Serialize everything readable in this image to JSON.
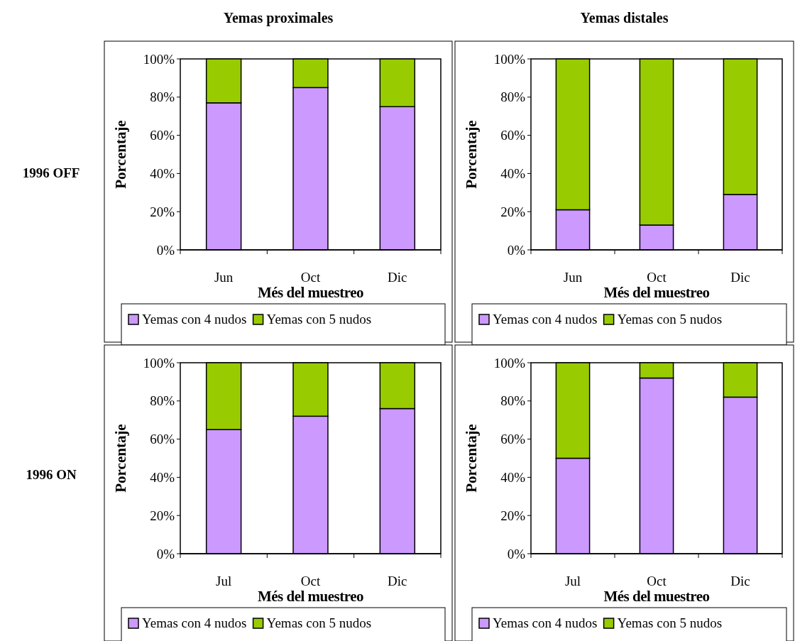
{
  "chart_data": [
    {
      "type": "bar",
      "title": "Yemas proximales",
      "annotations": [
        "1996 OFF"
      ],
      "categories": [
        "Jun",
        "Oct",
        "Dic"
      ],
      "stacked": true,
      "xlabel": "Més del muestreo",
      "ylabel": "Porcentaje",
      "ylim": [
        0,
        100
      ],
      "yticks": [
        {
          "value": 0,
          "label": "0%"
        },
        {
          "value": 20,
          "label": "20%"
        },
        {
          "value": 40,
          "label": "40%"
        },
        {
          "value": 60,
          "label": "60%"
        },
        {
          "value": 80,
          "label": "80%"
        },
        {
          "value": 100,
          "label": "100%"
        }
      ],
      "legend": "bottom",
      "series": [
        {
          "name": "Yemas con 4 nudos",
          "color": "#cc99ff",
          "values": [
            77,
            85,
            75
          ]
        },
        {
          "name": "Yemas con 5 nudos",
          "color": "#99cc00",
          "values": [
            23,
            15,
            25
          ]
        }
      ]
    },
    {
      "type": "bar",
      "title": "Yemas distales",
      "categories": [
        "Jun",
        "Oct",
        "Dic"
      ],
      "stacked": true,
      "xlabel": "Més del muestreo",
      "ylabel": "Porcentaje",
      "ylim": [
        0,
        100
      ],
      "yticks": [
        {
          "value": 0,
          "label": "0%"
        },
        {
          "value": 20,
          "label": "20%"
        },
        {
          "value": 40,
          "label": "40%"
        },
        {
          "value": 60,
          "label": "60%"
        },
        {
          "value": 80,
          "label": "80%"
        },
        {
          "value": 100,
          "label": "100%"
        }
      ],
      "legend": "bottom",
      "series": [
        {
          "name": "Yemas con 4 nudos",
          "color": "#cc99ff",
          "values": [
            21,
            13,
            29
          ]
        },
        {
          "name": "Yemas con 5 nudos",
          "color": "#99cc00",
          "values": [
            79,
            87,
            71
          ]
        }
      ]
    },
    {
      "type": "bar",
      "annotations": [
        "1996 ON"
      ],
      "categories": [
        "Jul",
        "Oct",
        "Dic"
      ],
      "stacked": true,
      "xlabel": "Més del muestreo",
      "ylabel": "Porcentaje",
      "ylim": [
        0,
        100
      ],
      "yticks": [
        {
          "value": 0,
          "label": "0%"
        },
        {
          "value": 20,
          "label": "20%"
        },
        {
          "value": 40,
          "label": "40%"
        },
        {
          "value": 60,
          "label": "60%"
        },
        {
          "value": 80,
          "label": "80%"
        },
        {
          "value": 100,
          "label": "100%"
        }
      ],
      "legend": "bottom",
      "series": [
        {
          "name": "Yemas con 4 nudos",
          "color": "#cc99ff",
          "values": [
            65,
            72,
            76
          ]
        },
        {
          "name": "Yemas con 5 nudos",
          "color": "#99cc00",
          "values": [
            35,
            28,
            24
          ]
        }
      ]
    },
    {
      "type": "bar",
      "categories": [
        "Jul",
        "Oct",
        "Dic"
      ],
      "stacked": true,
      "xlabel": "Més del muestreo",
      "ylabel": "Porcentaje",
      "ylim": [
        0,
        100
      ],
      "yticks": [
        {
          "value": 0,
          "label": "0%"
        },
        {
          "value": 20,
          "label": "20%"
        },
        {
          "value": 40,
          "label": "40%"
        },
        {
          "value": 60,
          "label": "60%"
        },
        {
          "value": 80,
          "label": "80%"
        },
        {
          "value": 100,
          "label": "100%"
        }
      ],
      "legend": "bottom",
      "series": [
        {
          "name": "Yemas con 4 nudos",
          "color": "#cc99ff",
          "values": [
            50,
            92,
            82
          ]
        },
        {
          "name": "Yemas con 5 nudos",
          "color": "#99cc00",
          "values": [
            50,
            8,
            18
          ]
        }
      ]
    }
  ]
}
